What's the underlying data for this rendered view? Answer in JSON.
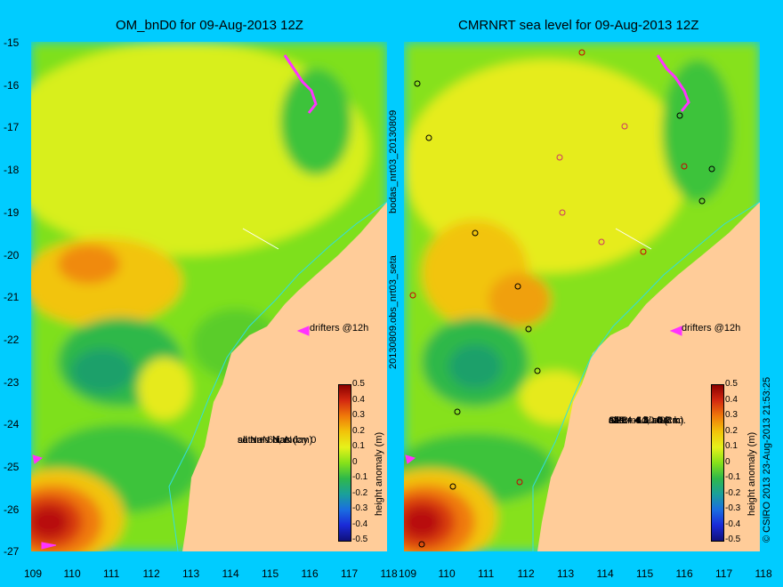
{
  "left_panel": {
    "title": "OM_bnD0 for 09-Aug-2013 12Z",
    "drifters_label": "drifters @12h",
    "stats": [
      "seta +-6d, mday 0",
      "sat rms bias (cm)",
      "all NaN NaN"
    ]
  },
  "right_panel": {
    "title": "CMRNRT sea level  for 09-Aug-2013 12Z",
    "drifters_label": "drifters @12h",
    "stats": [
      "obs +-6d, oi0",
      "sat rms bias (cm)",
      "J2R   4.3  -0.2 r.",
      "C2R   4.1  -1.2 m.",
      "SRL   4.6  -0.6 k.",
      "all   4.4  -0.64"
    ]
  },
  "axes": {
    "x_ticks": [
      "109",
      "110",
      "111",
      "112",
      "113",
      "114",
      "115",
      "116",
      "117",
      "118"
    ],
    "y_ticks": [
      "-15",
      "-16",
      "-17",
      "-18",
      "-19",
      "-20",
      "-21",
      "-22",
      "-23",
      "-24",
      "-25",
      "-26",
      "-27"
    ]
  },
  "colorbar": {
    "label": "height anomaly (m)",
    "ticks": [
      "0.5",
      "0.4",
      "0.3",
      "0.2",
      "0.1",
      "0",
      "-0.1",
      "-0.2",
      "-0.3",
      "-0.4",
      "-0.5"
    ]
  },
  "side_labels": {
    "middle_top": "bodas_nrt03_20130809",
    "middle_bottom": "20130809.obs_nrt03_seta",
    "right_edge": "© CSIRO 2013   23-Aug-2013 21:53:25"
  },
  "colors": {
    "background": "#00ccff",
    "land": "#ffcc99",
    "green": "#33cc33",
    "yellow": "#e6f21a",
    "orange": "#ff9900",
    "red": "#cc2200",
    "drifter": "#ff33ff"
  }
}
